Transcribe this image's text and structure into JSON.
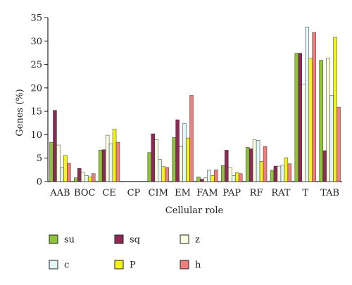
{
  "chart_data": {
    "type": "bar",
    "xlabel": "Cellular role",
    "ylabel": "Genes (%)",
    "ylim": [
      0,
      35
    ],
    "yticks": [
      0,
      5,
      10,
      15,
      20,
      25,
      30,
      35
    ],
    "grid": false,
    "legend_position": "bottom",
    "categories": [
      "AAB",
      "BOC",
      "CE",
      "CP",
      "CIM",
      "EM",
      "FAM",
      "PAP",
      "RF",
      "RAT",
      "T",
      "TAB"
    ],
    "series": [
      {
        "name": "su",
        "color": "#8fc43a",
        "values": [
          8.4,
          0.8,
          6.7,
          0.0,
          6.2,
          9.4,
          1.0,
          3.4,
          7.3,
          2.4,
          27.4,
          25.9
        ]
      },
      {
        "name": "sq",
        "color": "#8c2a56",
        "values": [
          15.2,
          2.8,
          6.8,
          0.0,
          10.2,
          13.2,
          0.5,
          6.7,
          7.0,
          3.3,
          27.4,
          6.6
        ]
      },
      {
        "name": "z",
        "color": "#fdfde0",
        "values": [
          7.8,
          2.0,
          9.9,
          0.0,
          8.9,
          7.4,
          0.8,
          2.9,
          8.9,
          3.3,
          20.8,
          26.4
        ]
      },
      {
        "name": "c",
        "color": "#e0f6fa",
        "values": [
          3.0,
          1.3,
          8.0,
          0.0,
          4.7,
          12.4,
          2.4,
          1.3,
          8.8,
          3.5,
          33.0,
          18.4
        ]
      },
      {
        "name": "P",
        "color": "#f4f418",
        "values": [
          5.6,
          1.0,
          11.2,
          0.0,
          3.2,
          9.3,
          1.3,
          1.9,
          4.3,
          5.1,
          26.3,
          30.8
        ]
      },
      {
        "name": "h",
        "color": "#f07e7e",
        "values": [
          3.9,
          1.7,
          8.4,
          0.0,
          3.0,
          18.4,
          2.5,
          1.7,
          7.5,
          3.8,
          31.8,
          15.9
        ]
      }
    ]
  }
}
